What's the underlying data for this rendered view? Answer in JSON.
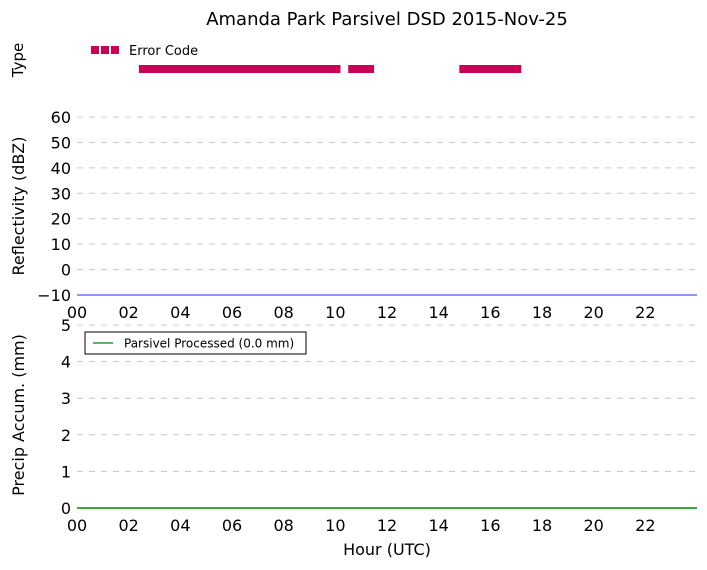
{
  "chart_data": {
    "title": "Amanda Park Parsivel DSD 2015-Nov-25",
    "panels": [
      {
        "type": "timeline",
        "ylabel": "Type",
        "legend": "Error Code",
        "color": "#cc0055",
        "segments": [
          [
            2.4,
            10.2
          ],
          [
            10.5,
            11.5
          ],
          [
            14.8,
            17.2
          ]
        ]
      },
      {
        "type": "line",
        "ylabel": "Reflectivity (dBZ)",
        "ylim": [
          -10,
          60
        ],
        "yticks": [
          60,
          50,
          40,
          30,
          20,
          10,
          0,
          -10
        ],
        "ytick_labels": [
          "60",
          "50",
          "40",
          "30",
          "20",
          "10",
          "0",
          "−10"
        ],
        "series": [
          {
            "values": [],
            "color": "#5555ff"
          }
        ]
      },
      {
        "type": "line",
        "ylabel": "Precip Accum. (mm)",
        "ylim": [
          0,
          5
        ],
        "yticks": [
          5,
          4,
          3,
          2,
          1,
          0
        ],
        "ytick_labels": [
          "5",
          "4",
          "3",
          "2",
          "1",
          "0"
        ],
        "legend": "Parsivel Processed (0.0 mm)",
        "legend_position": "top-left",
        "series": [
          {
            "name": "Parsivel Processed (0.0 mm)",
            "x": [
              0,
              24
            ],
            "values": [
              0,
              0
            ],
            "color": "#008800"
          }
        ]
      }
    ],
    "xlabel": "Hour (UTC)",
    "xlim": [
      0,
      24
    ],
    "xticks": [
      "00",
      "02",
      "04",
      "06",
      "08",
      "10",
      "12",
      "14",
      "16",
      "18",
      "20",
      "22"
    ],
    "grid": "horizontal dashed"
  }
}
